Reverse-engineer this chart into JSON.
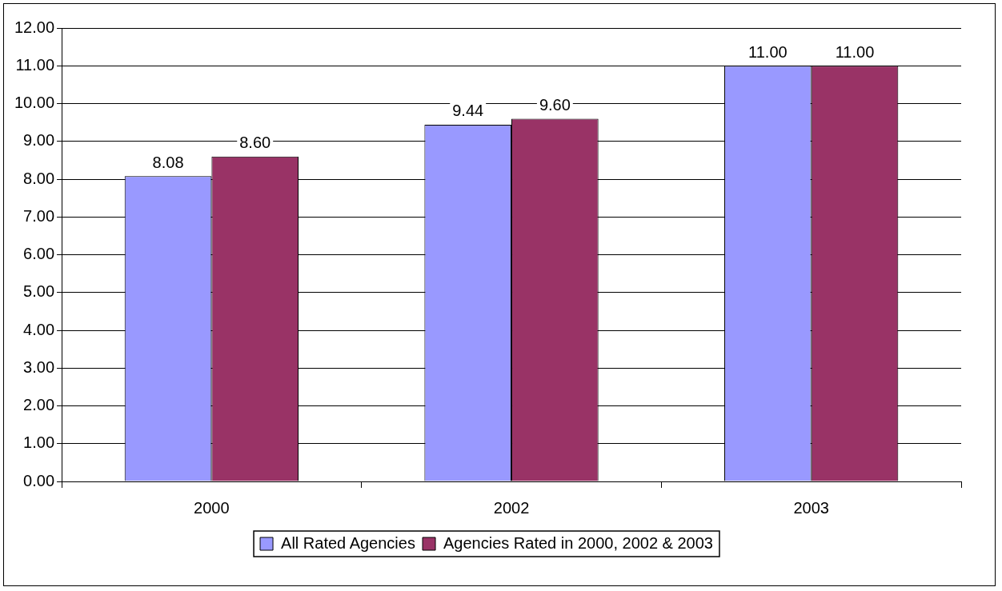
{
  "chart_data": {
    "type": "bar",
    "categories": [
      "2000",
      "2002",
      "2003"
    ],
    "series": [
      {
        "name": "All Rated Agencies",
        "color": "#9999ff",
        "values": [
          8.08,
          9.44,
          11.0
        ]
      },
      {
        "name": "Agencies Rated in 2000, 2002 & 2003",
        "color": "#993366",
        "values": [
          8.6,
          9.6,
          11.0
        ]
      }
    ],
    "ylim": [
      0,
      12
    ],
    "yticks": [
      {
        "value": 0,
        "label": "0.00"
      },
      {
        "value": 1,
        "label": "1.00"
      },
      {
        "value": 2,
        "label": "2.00"
      },
      {
        "value": 3,
        "label": "3.00"
      },
      {
        "value": 4,
        "label": "4.00"
      },
      {
        "value": 5,
        "label": "5.00"
      },
      {
        "value": 6,
        "label": "6.00"
      },
      {
        "value": 7,
        "label": "7.00"
      },
      {
        "value": 8,
        "label": "8.00"
      },
      {
        "value": 9,
        "label": "9.00"
      },
      {
        "value": 10,
        "label": "10.00"
      },
      {
        "value": 11,
        "label": "11.00"
      },
      {
        "value": 12,
        "label": "12.00"
      }
    ],
    "value_labels": [
      [
        "8.08",
        "9.44",
        "11.00"
      ],
      [
        "8.60",
        "9.60",
        "11.00"
      ]
    ],
    "grid": "y",
    "legend": "bottom"
  }
}
